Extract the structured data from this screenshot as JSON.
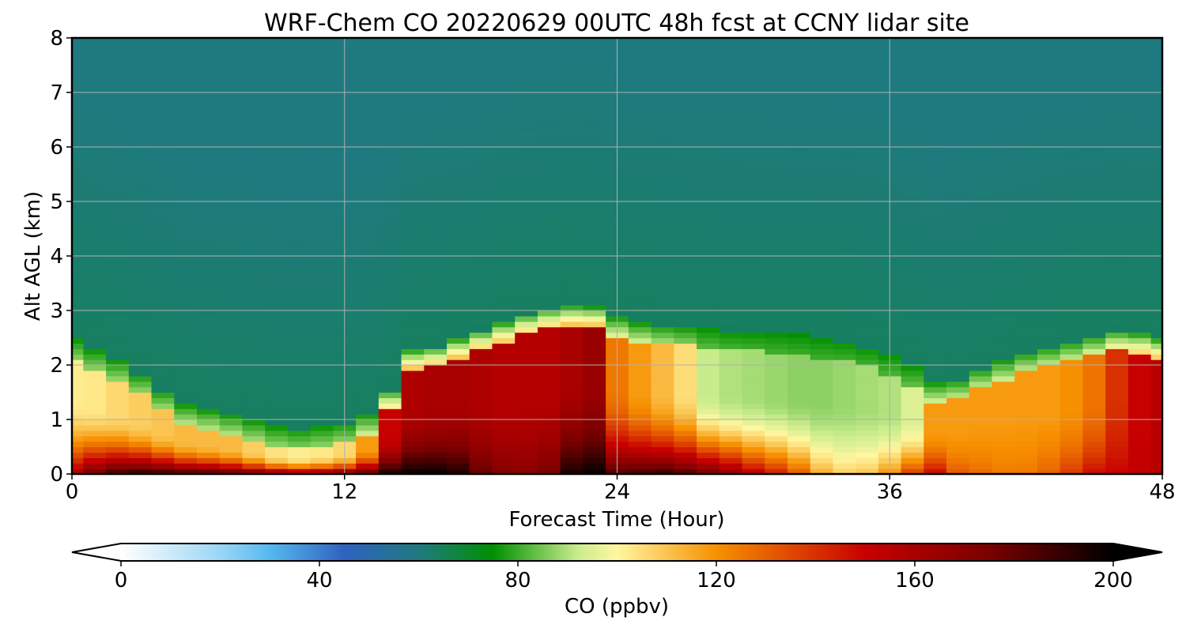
{
  "chart_data": {
    "type": "heatmap",
    "title": "WRF-Chem CO  20220629 00UTC 48h fcst at CCNY lidar site",
    "xlabel": "Forecast Time (Hour)",
    "ylabel": "Alt AGL (km)",
    "xlim": [
      0,
      48
    ],
    "ylim": [
      0,
      8
    ],
    "xticks": [
      "0",
      "12",
      "24",
      "36",
      "48"
    ],
    "yticks": [
      "0",
      "1",
      "2",
      "3",
      "4",
      "5",
      "6",
      "7",
      "8"
    ],
    "grid": true,
    "colorbar": {
      "label": "CO  (ppbv)",
      "range": [
        0,
        200
      ],
      "extend": "both",
      "orientation": "horizontal",
      "ticks": [
        "0",
        "40",
        "80",
        "120",
        "160",
        "200"
      ],
      "color_stops": [
        {
          "value": 0,
          "color": "#ffffff"
        },
        {
          "value": 20,
          "color": "#9bd6f5"
        },
        {
          "value": 30,
          "color": "#55b9ef"
        },
        {
          "value": 45,
          "color": "#2f62c0"
        },
        {
          "value": 60,
          "color": "#1f7a80"
        },
        {
          "value": 75,
          "color": "#009000"
        },
        {
          "value": 92,
          "color": "#c8ec8c"
        },
        {
          "value": 100,
          "color": "#fff7a0"
        },
        {
          "value": 120,
          "color": "#f79000"
        },
        {
          "value": 150,
          "color": "#c80000"
        },
        {
          "value": 175,
          "color": "#7a0000"
        },
        {
          "value": 200,
          "color": "#000000"
        }
      ]
    },
    "field": {
      "hours": [
        0,
        1,
        2,
        3,
        4,
        5,
        6,
        7,
        8,
        9,
        10,
        11,
        12,
        13,
        14,
        15,
        16,
        17,
        18,
        19,
        20,
        21,
        22,
        23,
        24,
        25,
        26,
        27,
        28,
        29,
        30,
        31,
        32,
        33,
        34,
        35,
        36,
        37,
        38,
        39,
        40,
        41,
        42,
        43,
        44,
        45,
        46,
        47,
        48
      ],
      "boundary_top_km": [
        2.15,
        1.95,
        1.75,
        1.5,
        1.2,
        0.95,
        0.85,
        0.75,
        0.65,
        0.55,
        0.5,
        0.55,
        0.6,
        0.75,
        1.2,
        1.95,
        2.0,
        2.15,
        2.3,
        2.45,
        2.6,
        2.7,
        2.75,
        2.72,
        2.55,
        2.45,
        2.4,
        2.38,
        2.35,
        2.3,
        2.28,
        2.25,
        2.22,
        2.15,
        2.1,
        2.0,
        1.85,
        1.65,
        1.35,
        1.4,
        1.6,
        1.75,
        1.9,
        2.0,
        2.1,
        2.2,
        2.3,
        2.25,
        2.15
      ],
      "ml_co_low_ppbv": [
        102,
        103,
        106,
        108,
        110,
        112,
        112,
        112,
        108,
        104,
        102,
        103,
        106,
        118,
        150,
        158,
        160,
        160,
        158,
        156,
        156,
        156,
        160,
        165,
        125,
        118,
        112,
        105,
        92,
        90,
        89,
        88,
        87,
        87,
        88,
        89,
        90,
        95,
        118,
        118,
        118,
        118,
        118,
        118,
        120,
        126,
        140,
        150,
        155
      ],
      "ml_co_surface_ppbv": [
        160,
        178,
        190,
        195,
        194,
        192,
        192,
        188,
        182,
        175,
        170,
        172,
        180,
        188,
        198,
        200,
        200,
        195,
        180,
        172,
        170,
        175,
        196,
        200,
        185,
        188,
        190,
        185,
        178,
        168,
        155,
        145,
        132,
        115,
        108,
        110,
        120,
        138,
        150,
        132,
        128,
        125,
        125,
        130,
        138,
        148,
        150,
        152,
        155
      ],
      "ft_co_low_ppbv": 64,
      "ft_co_high_ppbv": 60
    }
  }
}
